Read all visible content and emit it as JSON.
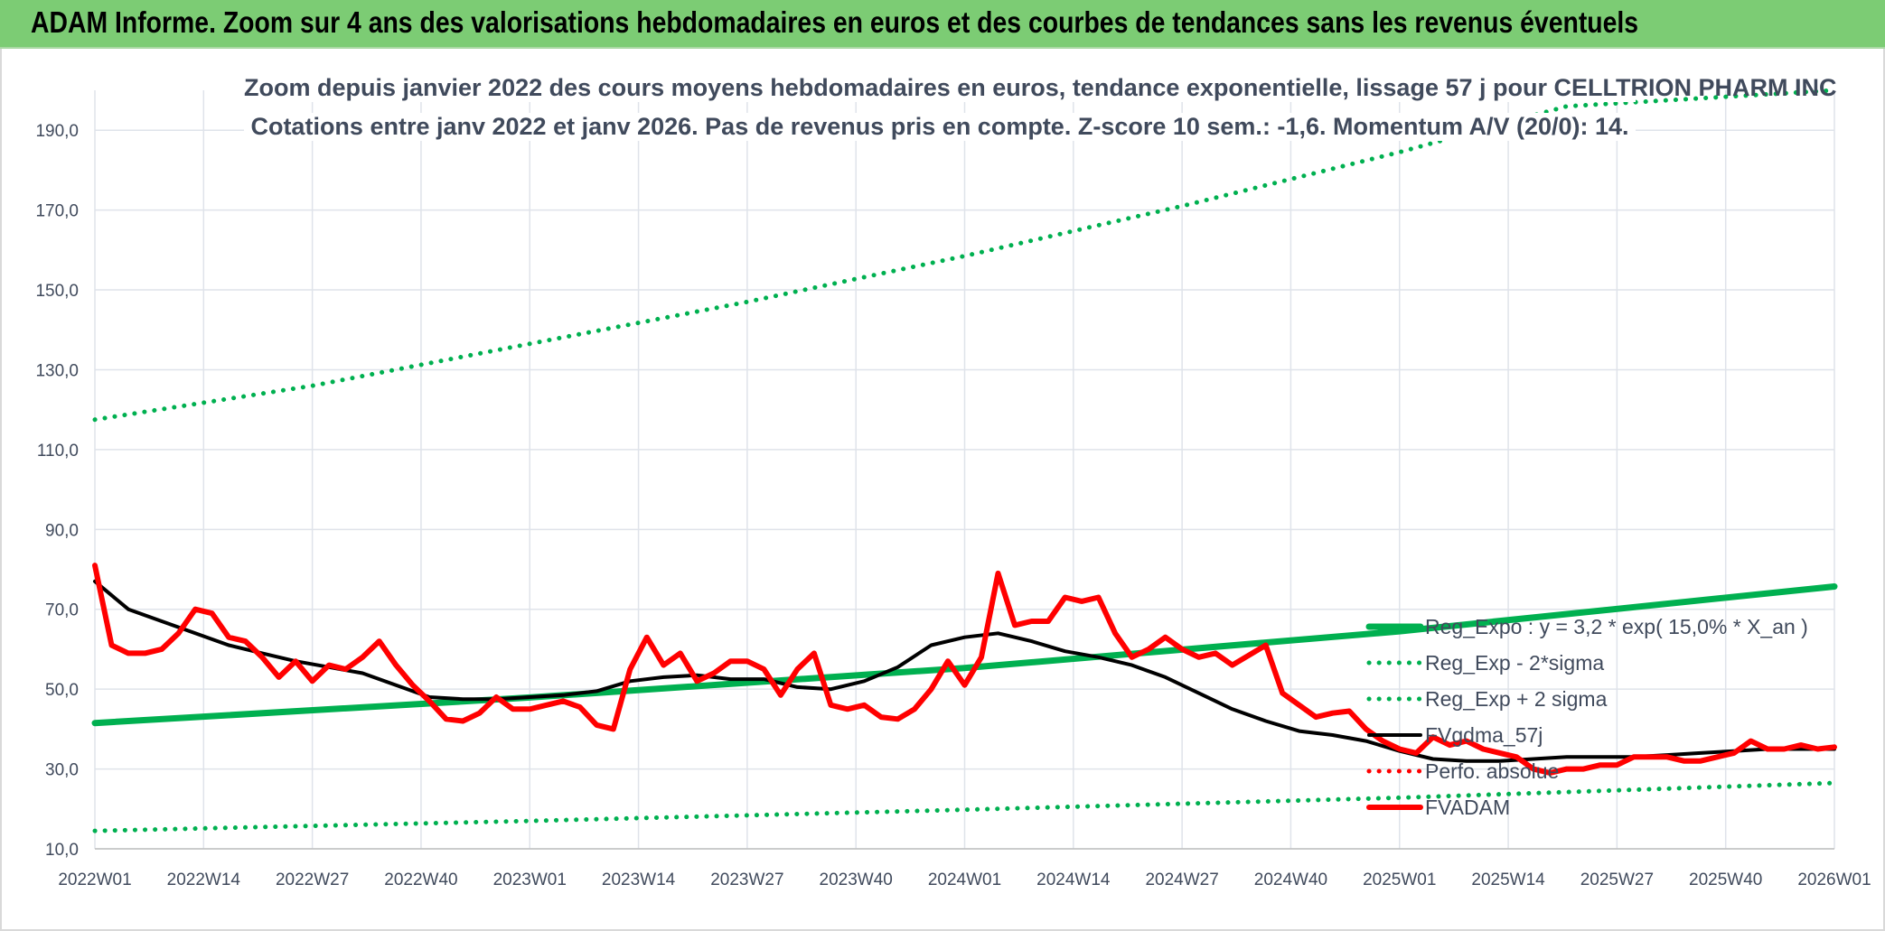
{
  "banner": {
    "title": "ADAM Informe. Zoom sur 4 ans des valorisations hebdomadaires en euros et des courbes de tendances sans les revenus éventuels"
  },
  "chart_data": {
    "type": "line",
    "title": "Zoom depuis janvier 2022 des cours moyens hebdomadaires en euros, tendance exponentielle, lissage 57 j pour CELLTRION PHARM INC",
    "subtitle": "Cotations entre janv 2022 et janv 2026. Pas de revenus pris en compte. Z-score 10 sem.: -1,6. Momentum A/V (20/0): 14.",
    "xlabel": "",
    "ylabel": "",
    "ylim": [
      10,
      200
    ],
    "yticks": [
      10,
      30,
      50,
      70,
      90,
      110,
      130,
      150,
      170,
      190
    ],
    "ytick_labels": [
      "10,0",
      "30,0",
      "50,0",
      "70,0",
      "90,0",
      "110,0",
      "130,0",
      "150,0",
      "170,0",
      "190,0"
    ],
    "xticks": [
      "2022W01",
      "2022W14",
      "2022W27",
      "2022W40",
      "2023W01",
      "2023W14",
      "2023W27",
      "2023W40",
      "2024W01",
      "2024W14",
      "2024W27",
      "2024W40",
      "2025W01",
      "2025W14",
      "2025W27",
      "2025W40",
      "2026W01"
    ],
    "grid": true,
    "legend_position": "right",
    "series": [
      {
        "name": "Reg_Expo : y = 3,2 * exp( 15,0% * X_an )",
        "color": "#00b050",
        "style": "solid",
        "x_weeks": [
          0,
          52,
          104,
          156,
          208
        ],
        "values": [
          41.5,
          47.9,
          55.3,
          64.5,
          75.7
        ]
      },
      {
        "name": "Reg_Exp - 2*sigma",
        "color": "#00b050",
        "style": "dotted",
        "x_weeks": [
          0,
          52,
          104,
          156,
          208
        ],
        "values": [
          14.5,
          17.0,
          19.8,
          22.8,
          26.5
        ]
      },
      {
        "name": "Reg_Exp + 2 sigma",
        "color": "#00b050",
        "style": "dotted",
        "x_weeks": [
          0,
          26,
          52,
          78,
          104,
          130,
          156,
          176,
          208
        ],
        "values": [
          117.5,
          126.0,
          136.5,
          147.0,
          158.5,
          171.0,
          184.5,
          196.0,
          200.0
        ]
      },
      {
        "name": "FVgdma_57j",
        "color": "#000000",
        "style": "solid",
        "x_weeks": [
          0,
          4,
          8,
          12,
          16,
          20,
          24,
          28,
          32,
          36,
          40,
          44,
          48,
          52,
          56,
          60,
          64,
          68,
          72,
          76,
          80,
          84,
          88,
          92,
          96,
          100,
          104,
          108,
          112,
          116,
          120,
          124,
          128,
          132,
          136,
          140,
          144,
          148,
          152,
          156,
          160,
          164,
          168,
          172,
          176,
          180,
          184,
          188,
          192,
          196,
          200,
          204,
          208
        ],
        "values": [
          77,
          70,
          67,
          64,
          61,
          59,
          57,
          55.5,
          54,
          51,
          48,
          47.5,
          47.5,
          48,
          48.5,
          49.5,
          52,
          53,
          53.5,
          52.5,
          52.5,
          50.5,
          50,
          52,
          55.5,
          61,
          63,
          64,
          62,
          59.5,
          58,
          56,
          53,
          49,
          45,
          42,
          39.5,
          38.5,
          37,
          34.5,
          32.5,
          32,
          32,
          32.5,
          33,
          33,
          33,
          33.5,
          34,
          34.5,
          35,
          35,
          35
        ]
      },
      {
        "name": "Perfo. absolue",
        "color": "#ff0000",
        "style": "dotted",
        "x_weeks": [],
        "values": []
      },
      {
        "name": "FVADAM",
        "color": "#ff0000",
        "style": "solid",
        "x_weeks": [
          0,
          2,
          4,
          6,
          8,
          10,
          12,
          14,
          16,
          18,
          20,
          22,
          24,
          26,
          28,
          30,
          32,
          34,
          36,
          38,
          40,
          42,
          44,
          46,
          48,
          50,
          52,
          54,
          56,
          58,
          60,
          62,
          64,
          66,
          68,
          70,
          72,
          74,
          76,
          78,
          80,
          82,
          84,
          86,
          88,
          90,
          92,
          94,
          96,
          98,
          100,
          102,
          104,
          106,
          108,
          110,
          112,
          114,
          116,
          118,
          120,
          122,
          124,
          126,
          128,
          130,
          132,
          134,
          136,
          138,
          140,
          142,
          144,
          146,
          148,
          150,
          152,
          154,
          156,
          158,
          160,
          162,
          164,
          166,
          168,
          170,
          172,
          174,
          176,
          178,
          180,
          182,
          184,
          186,
          188,
          190,
          192,
          194,
          196,
          198,
          200,
          202,
          204,
          206,
          208
        ],
        "values": [
          81,
          61,
          59,
          59,
          60,
          64,
          70,
          69,
          63,
          62,
          58,
          53,
          57,
          52,
          56,
          55,
          58,
          62,
          56,
          51,
          47,
          42.5,
          42,
          44,
          48,
          45,
          45,
          46,
          47,
          45.5,
          41,
          40,
          55,
          63,
          56,
          59,
          52,
          54,
          57,
          57,
          55,
          48.5,
          55,
          59,
          46,
          45,
          46,
          43,
          42.5,
          45,
          50,
          57,
          51,
          58,
          79,
          66,
          67,
          67,
          73,
          72,
          73,
          64,
          58,
          60,
          63,
          60,
          58,
          59,
          56,
          58.5,
          61,
          49,
          46,
          43,
          44,
          44.5,
          40,
          37,
          35,
          34,
          38,
          36,
          37,
          35,
          34,
          33,
          30,
          29,
          30,
          30,
          31,
          31,
          33,
          33,
          33,
          32,
          32,
          33,
          34,
          37,
          35,
          35,
          36,
          35,
          35.5
        ]
      }
    ]
  }
}
